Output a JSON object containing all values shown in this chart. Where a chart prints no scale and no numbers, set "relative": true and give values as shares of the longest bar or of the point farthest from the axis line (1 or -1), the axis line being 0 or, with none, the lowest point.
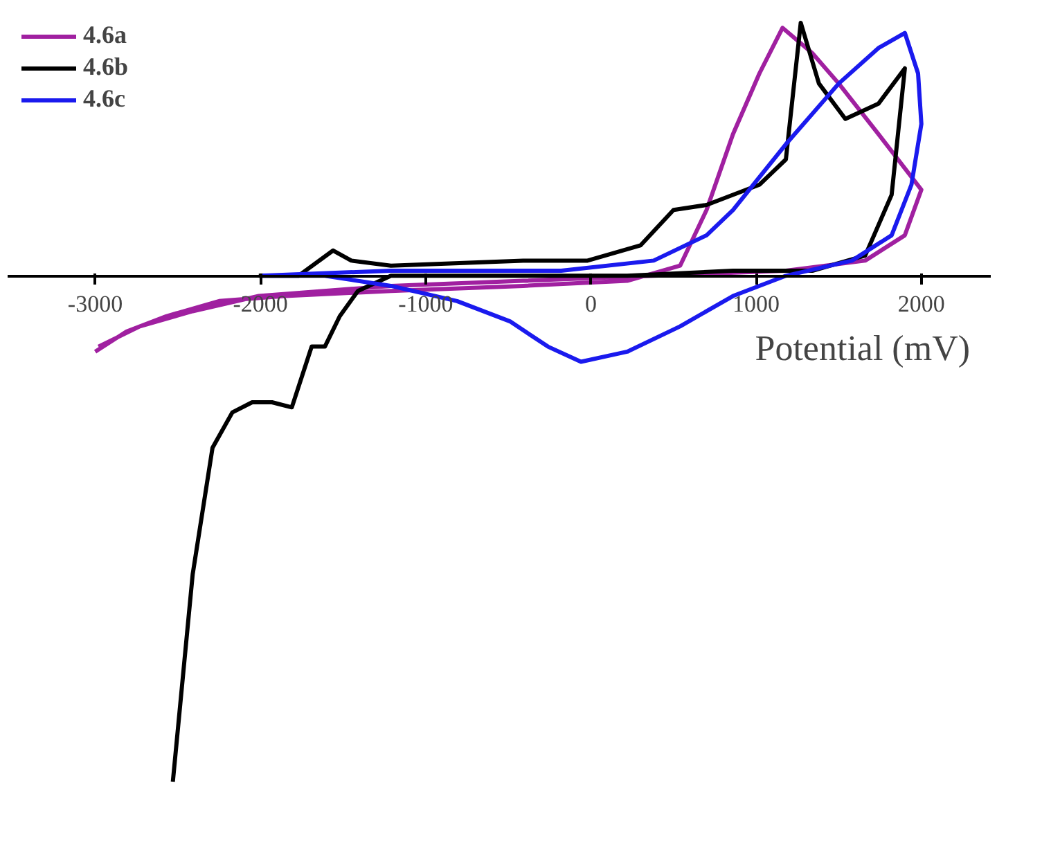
{
  "chart_data": {
    "type": "line",
    "xlabel": "Potential (mV)",
    "relative": true,
    "xlim": [
      -3530,
      2420
    ],
    "xticks": [
      -3000,
      -2000,
      -1000,
      0,
      1000,
      2000
    ],
    "legend": "top left",
    "grid": false,
    "marker": "none",
    "line_style": "solid",
    "series": [
      {
        "name": "4.6a",
        "color": "#a020a0",
        "x": [
          -3000,
          -2810,
          -2570,
          -2250,
          -1850,
          -1210,
          -410,
          220,
          540,
          700,
          860,
          1020,
          1160,
          1340,
          1500,
          1740,
          2000,
          1900,
          1660,
          1180,
          380,
          -410,
          -1210,
          -2010,
          -2410,
          -2730,
          -2980
        ],
        "values": [
          -0.15,
          -0.11,
          -0.08,
          -0.05,
          -0.04,
          -0.03,
          -0.02,
          -0.01,
          0.02,
          0.13,
          0.28,
          0.4,
          0.49,
          0.44,
          0.38,
          0.28,
          0.17,
          0.08,
          0.03,
          0.01,
          0,
          -0.01,
          -0.02,
          -0.04,
          -0.07,
          -0.1,
          -0.14
        ]
      },
      {
        "name": "4.6b",
        "color": "#000000",
        "x": [
          -2010,
          -1770,
          -1560,
          -1450,
          -1210,
          -410,
          -20,
          300,
          500,
          700,
          1020,
          1180,
          1270,
          1380,
          1540,
          1740,
          1900,
          1820,
          1660,
          1340,
          860,
          220,
          -1210,
          -1410,
          -1520,
          -1610,
          -1690,
          -1810,
          -1930,
          -2050,
          -2170,
          -2290,
          -2410,
          -2530
        ],
        "values": [
          0,
          0,
          0.05,
          0.03,
          0.02,
          0.03,
          0.03,
          0.06,
          0.13,
          0.14,
          0.18,
          0.23,
          0.5,
          0.38,
          0.31,
          0.34,
          0.41,
          0.16,
          0.04,
          0.01,
          0.01,
          0,
          0,
          -0.03,
          -0.08,
          -0.14,
          -0.14,
          -0.26,
          -0.25,
          -0.25,
          -0.27,
          -0.34,
          -0.59,
          -1
        ]
      },
      {
        "name": "4.6c",
        "color": "#1a1aee",
        "x": [
          -2000,
          -1210,
          -180,
          380,
          700,
          860,
          1180,
          1500,
          1740,
          1900,
          1980,
          2000,
          1940,
          1820,
          1580,
          1180,
          860,
          540,
          220,
          -60,
          -260,
          -490,
          -810,
          -1210,
          -1610,
          -1990
        ],
        "values": [
          0,
          0.01,
          0.01,
          0.03,
          0.08,
          0.13,
          0.26,
          0.38,
          0.45,
          0.48,
          0.4,
          0.3,
          0.18,
          0.08,
          0.03,
          0,
          -0.04,
          -0.1,
          -0.15,
          -0.17,
          -0.14,
          -0.09,
          -0.05,
          -0.02,
          0,
          0
        ]
      }
    ]
  }
}
